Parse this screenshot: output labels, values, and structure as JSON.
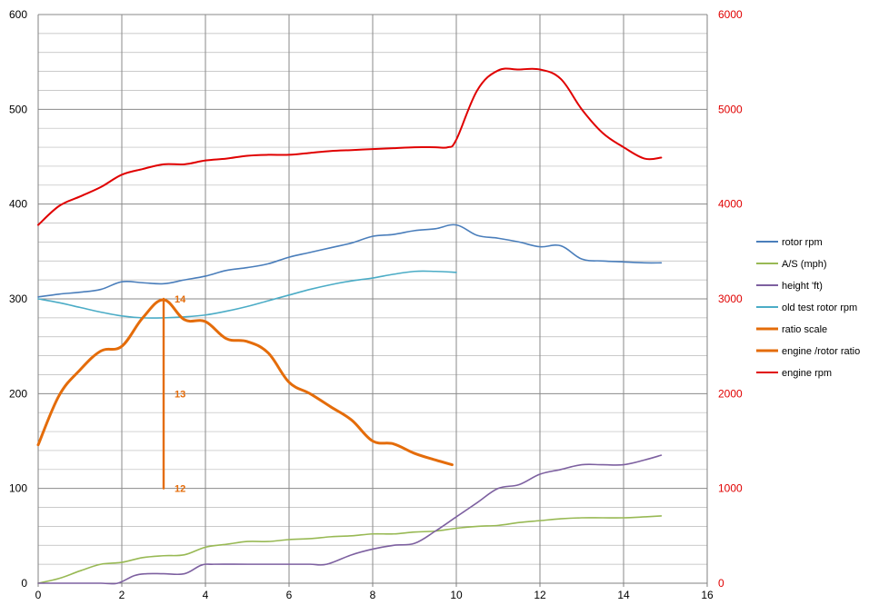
{
  "chart_data": {
    "type": "line",
    "title": "",
    "xlabel": "",
    "ylabel": "",
    "y2label": "",
    "xlim": [
      0,
      16
    ],
    "x_ticks": [
      "0",
      "2",
      "4",
      "6",
      "8",
      "10",
      "12",
      "14",
      "16"
    ],
    "ylim": [
      0,
      600
    ],
    "y_ticks": [
      "0",
      "100",
      "200",
      "300",
      "400",
      "500",
      "600"
    ],
    "y2lim": [
      0,
      6000
    ],
    "y2_ticks": [
      "0",
      "1000",
      "2000",
      "3000",
      "4000",
      "5000",
      "6000"
    ],
    "grid": true,
    "legend_position": "right",
    "colors": {
      "rotor_rpm": "#4a7ebb",
      "airspeed": "#98b954",
      "height": "#7d60a0",
      "old_test": "#4bacc6",
      "ratio": "#e46c0a",
      "engine_rpm": "#e00000",
      "axis_right": "#e00000",
      "grid": "#808080"
    },
    "series": [
      {
        "name": "rotor rpm",
        "key": "rotor_rpm",
        "axis": "left",
        "x": [
          0,
          0.5,
          1,
          1.5,
          2,
          2.5,
          3,
          3.5,
          4,
          4.5,
          5,
          5.5,
          6,
          6.5,
          7,
          7.5,
          8,
          8.5,
          9,
          9.5,
          10,
          10.5,
          11,
          11.5,
          12,
          12.5,
          13,
          13.5,
          14,
          14.5,
          14.9
        ],
        "y": [
          302,
          305,
          307,
          310,
          318,
          317,
          316,
          320,
          324,
          330,
          333,
          337,
          344,
          349,
          354,
          359,
          366,
          368,
          372,
          374,
          378,
          367,
          364,
          360,
          355,
          356,
          342,
          340,
          339,
          338,
          338
        ]
      },
      {
        "name": "A/S (mph)",
        "key": "airspeed",
        "axis": "left",
        "x": [
          0,
          0.5,
          1,
          1.5,
          2,
          2.5,
          3,
          3.5,
          4,
          4.5,
          5,
          5.5,
          6,
          6.5,
          7,
          7.5,
          8,
          8.5,
          9,
          9.5,
          10,
          10.5,
          11,
          11.5,
          12,
          12.5,
          13,
          13.5,
          14,
          14.5,
          14.9
        ],
        "y": [
          0,
          5,
          13,
          20,
          22,
          27,
          29,
          30,
          38,
          41,
          44,
          44,
          46,
          47,
          49,
          50,
          52,
          52,
          54,
          55,
          58,
          60,
          61,
          64,
          66,
          68,
          69,
          69,
          69,
          70,
          71
        ]
      },
      {
        "name": "height 'ft)",
        "key": "height",
        "axis": "left",
        "x": [
          0,
          0.5,
          1,
          1.5,
          1.9,
          2.3,
          2.6,
          3,
          3.5,
          3.9,
          4.2,
          5,
          6,
          6.5,
          6.9,
          7.5,
          8,
          8.5,
          9,
          9.5,
          10,
          10.5,
          11,
          11.5,
          12,
          12.5,
          13,
          13.5,
          14,
          14.5,
          14.9
        ],
        "y": [
          0,
          0,
          0,
          0,
          0,
          8,
          10,
          10,
          10,
          19,
          20,
          20,
          20,
          20,
          20,
          30,
          36,
          40,
          42,
          55,
          70,
          85,
          100,
          104,
          115,
          120,
          125,
          125,
          125,
          130,
          135
        ]
      },
      {
        "name": "old test rotor rpm",
        "key": "old_test",
        "axis": "left",
        "x": [
          0,
          0.5,
          1,
          1.5,
          2,
          2.5,
          3,
          3.5,
          4,
          4.5,
          5,
          5.5,
          6,
          6.5,
          7,
          7.5,
          8,
          8.5,
          9,
          9.5,
          10
        ],
        "y": [
          300,
          296,
          291,
          286,
          282,
          280,
          280,
          281,
          283,
          287,
          292,
          298,
          304,
          310,
          315,
          319,
          322,
          326,
          329,
          329,
          328
        ]
      },
      {
        "name": "ratio scale",
        "key": "ratio_scale",
        "axis": "left",
        "x": [
          3,
          3
        ],
        "y": [
          100,
          300
        ],
        "labels": [
          {
            "x": 3,
            "y": 300,
            "text": "14"
          },
          {
            "x": 3,
            "y": 200,
            "text": "13"
          },
          {
            "x": 3,
            "y": 100,
            "text": "12"
          }
        ]
      },
      {
        "name": "engine /rotor ratio",
        "key": "ratio",
        "axis": "left",
        "x": [
          0,
          0.5,
          1,
          1.5,
          2,
          2.5,
          3,
          3.5,
          4,
          4.5,
          5,
          5.5,
          6,
          6.5,
          7,
          7.5,
          8,
          8.5,
          9,
          9.5,
          9.9
        ],
        "y": [
          146,
          198,
          225,
          245,
          250,
          280,
          299,
          278,
          276,
          258,
          255,
          243,
          212,
          200,
          186,
          172,
          150,
          147,
          137,
          130,
          125
        ]
      },
      {
        "name": "engine rpm",
        "key": "engine_rpm",
        "axis": "right",
        "x": [
          0,
          0.5,
          1,
          1.5,
          2,
          2.5,
          3,
          3.5,
          4,
          4.5,
          5,
          5.5,
          6,
          6.5,
          7,
          7.5,
          8,
          8.5,
          9,
          9.5,
          9.8,
          10,
          10.5,
          11,
          11.5,
          12,
          12.5,
          13,
          13.5,
          14,
          14.5,
          14.9
        ],
        "y": [
          3780,
          3980,
          4080,
          4180,
          4310,
          4370,
          4420,
          4420,
          4460,
          4480,
          4510,
          4520,
          4520,
          4540,
          4560,
          4570,
          4580,
          4590,
          4600,
          4600,
          4600,
          4680,
          5200,
          5410,
          5420,
          5420,
          5320,
          5000,
          4750,
          4600,
          4480,
          4490
        ]
      }
    ]
  }
}
